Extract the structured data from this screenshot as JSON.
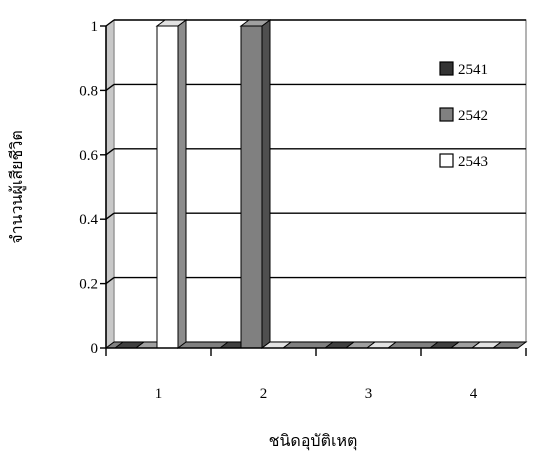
{
  "chart_data": {
    "type": "bar",
    "style": "3d-clustered-column",
    "title": "",
    "xlabel": "ชนิดอุบัติเหตุ",
    "ylabel": "จำนวนผู้เสียชีวิต",
    "categories": [
      "1",
      "2",
      "3",
      "4"
    ],
    "series": [
      {
        "name": "2541",
        "color": "#333333",
        "values": [
          0,
          0,
          0,
          0
        ]
      },
      {
        "name": "2542",
        "color": "#808080",
        "values": [
          0,
          1,
          0,
          0
        ]
      },
      {
        "name": "2543",
        "color": "#ffffff",
        "values": [
          1,
          0,
          0,
          0
        ]
      }
    ],
    "ylim": [
      0,
      1
    ],
    "yticks": [
      "0",
      "0.2",
      "0.4",
      "0.6",
      "0.8",
      "1"
    ],
    "grid": true,
    "legend": "right",
    "colors": {
      "floor": "#808080",
      "wall": "#ffffff",
      "gridline": "#000000"
    }
  }
}
